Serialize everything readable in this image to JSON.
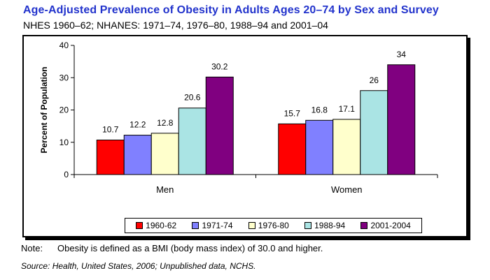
{
  "title": "Age-Adjusted Prevalence of Obesity in Adults Ages 20–74 by Sex and Survey",
  "subtitle": "NHES 1960–62; NHANES: 1971–74, 1976–80, 1988–94 and 2001–04",
  "note_label": "Note:",
  "note_text": "Obesity is defined as a BMI (body mass index) of 30.0 and higher.",
  "source": "Source: Health, United States, 2006; Unpublished data, NCHS.",
  "chart_data": {
    "type": "bar",
    "categories": [
      "Men",
      "Women"
    ],
    "ylabel": "Percent of Population",
    "ylim": [
      0,
      40
    ],
    "yticks": [
      "0",
      "10",
      "20",
      "30",
      "40"
    ],
    "legend_position": "bottom",
    "series": [
      {
        "name": "1960-62",
        "color": "#ff0000",
        "values": [
          10.7,
          15.7
        ],
        "labels": [
          "10.7",
          "15.7"
        ]
      },
      {
        "name": "1971-74",
        "color": "#8080ff",
        "values": [
          12.2,
          16.8
        ],
        "labels": [
          "12.2",
          "16.8"
        ]
      },
      {
        "name": "1976-80",
        "color": "#ffffcc",
        "values": [
          12.8,
          17.1
        ],
        "labels": [
          "12.8",
          "17.1"
        ]
      },
      {
        "name": "1988-94",
        "color": "#aae4e4",
        "values": [
          20.6,
          26
        ],
        "labels": [
          "20.6",
          "26"
        ]
      },
      {
        "name": "2001-2004",
        "color": "#800080",
        "values": [
          30.2,
          34
        ],
        "labels": [
          "30.2",
          "34"
        ]
      }
    ]
  }
}
